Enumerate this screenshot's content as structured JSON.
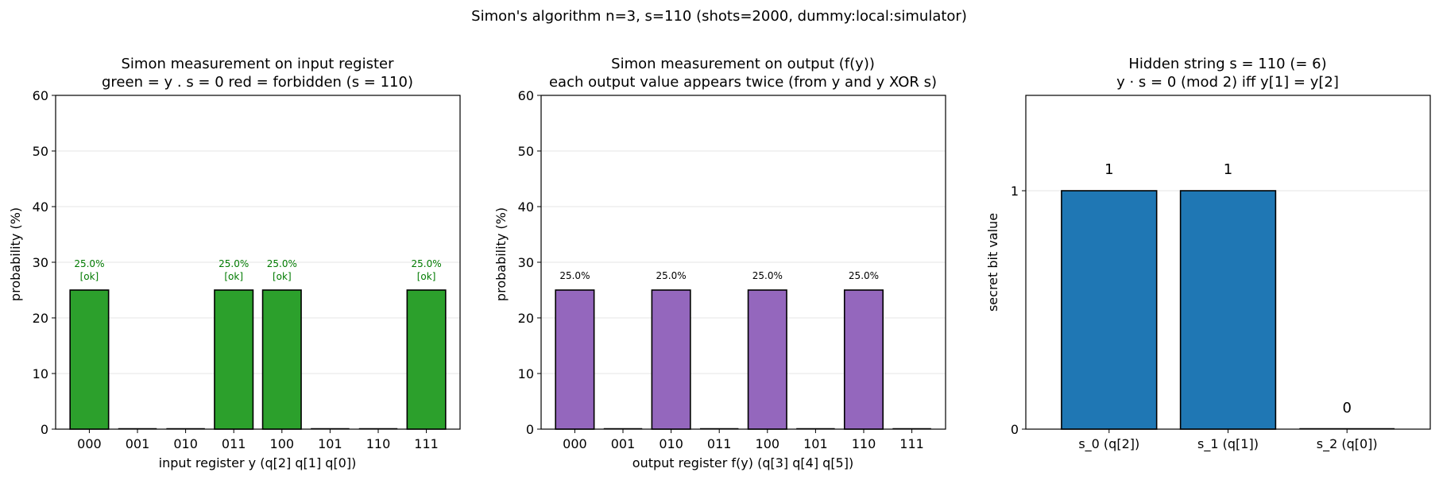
{
  "figure": {
    "suptitle": "Simon's algorithm  n=3, s=110  (shots=2000, dummy:local:simulator)"
  },
  "chart_data": [
    {
      "type": "bar",
      "title_line1": "Simon measurement on input register",
      "title_line2": "green = y . s = 0  red = forbidden  (s = 110)",
      "xlabel": "input register  y  (q[2] q[1] q[0])",
      "ylabel": "probability (%)",
      "ylim": [
        0,
        60
      ],
      "yticks": [
        "0",
        "10",
        "20",
        "30",
        "40",
        "50",
        "60"
      ],
      "grid": "horizontal",
      "categories": [
        "000",
        "001",
        "010",
        "011",
        "100",
        "101",
        "110",
        "111"
      ],
      "values": [
        25.0,
        0,
        0,
        25.0,
        25.0,
        0,
        0,
        25.0
      ],
      "value_labels": [
        "25.0%",
        "",
        "",
        "25.0%",
        "25.0%",
        "",
        "",
        "25.0%"
      ],
      "status_labels": [
        "[ok]",
        "",
        "",
        "[ok]",
        "[ok]",
        "",
        "",
        "[ok]"
      ],
      "bar_color": "#2ca02c",
      "label_color": "#007a00"
    },
    {
      "type": "bar",
      "title_line1": "Simon measurement on output (f(y))",
      "title_line2": "each output value appears twice (from y and y XOR s)",
      "xlabel": "output register  f(y)  (q[3] q[4] q[5])",
      "ylabel": "probability (%)",
      "ylim": [
        0,
        60
      ],
      "yticks": [
        "0",
        "10",
        "20",
        "30",
        "40",
        "50",
        "60"
      ],
      "grid": "horizontal",
      "categories": [
        "000",
        "001",
        "010",
        "011",
        "100",
        "101",
        "110",
        "111"
      ],
      "values": [
        25.0,
        0,
        25.0,
        0,
        25.0,
        0,
        25.0,
        0
      ],
      "value_labels": [
        "25.0%",
        "",
        "25.0%",
        "",
        "25.0%",
        "",
        "25.0%",
        ""
      ],
      "bar_color": "#9467bd",
      "label_color": "#000000"
    },
    {
      "type": "bar",
      "title_line1": "Hidden string s = 110 (= 6)",
      "title_line2": "y · s = 0 (mod 2)  iff  y[1] = y[2]",
      "xlabel": "",
      "ylabel": "secret bit value",
      "ylim": [
        0,
        1.4
      ],
      "yticks": [
        "0",
        "1"
      ],
      "ytick_values": [
        0,
        1
      ],
      "grid": "horizontal",
      "categories": [
        "s_0  (q[2])",
        "s_1  (q[1])",
        "s_2  (q[0])"
      ],
      "values": [
        1,
        1,
        0
      ],
      "value_labels": [
        "1",
        "1",
        "0"
      ],
      "bar_color": "#1f77b4",
      "label_color": "#000000"
    }
  ]
}
